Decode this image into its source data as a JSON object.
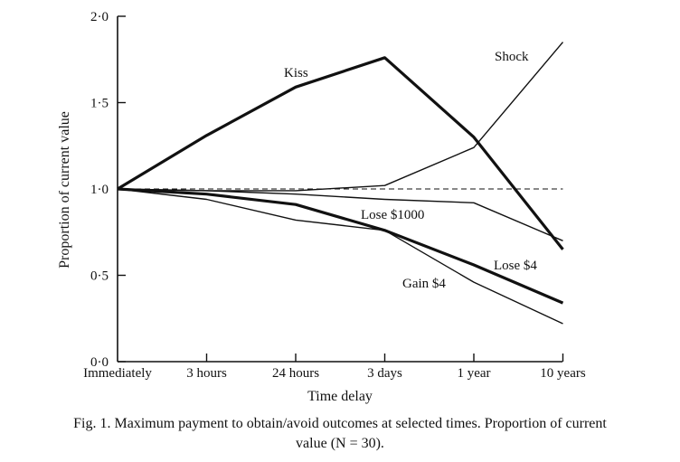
{
  "chart_data": {
    "type": "line",
    "xlabel": "Time delay",
    "ylabel": "Proportion of current value",
    "categories": [
      "Immediately",
      "3 hours",
      "24 hours",
      "3 days",
      "1 year",
      "10 years"
    ],
    "ylim": [
      0,
      2
    ],
    "yticks": [
      {
        "value": 0,
        "label": "0·0"
      },
      {
        "value": 0.5,
        "label": "0·5"
      },
      {
        "value": 1,
        "label": "1·0"
      },
      {
        "value": 1.5,
        "label": "1·5"
      },
      {
        "value": 2,
        "label": "2·0"
      }
    ],
    "reference_line": {
      "value": 1.0,
      "style": "dashed"
    },
    "series": [
      {
        "name": "Kiss",
        "weight": "thick",
        "values": [
          1.0,
          1.31,
          1.59,
          1.76,
          1.3,
          0.65
        ]
      },
      {
        "name": "Shock",
        "weight": "thin",
        "values": [
          1.0,
          0.99,
          0.99,
          1.02,
          1.24,
          1.85
        ]
      },
      {
        "name": "Lose $1000",
        "weight": "thin",
        "values": [
          1.0,
          0.99,
          0.97,
          0.94,
          0.92,
          0.7
        ]
      },
      {
        "name": "Lose $4",
        "weight": "thick",
        "values": [
          1.0,
          0.97,
          0.91,
          0.76,
          0.56,
          0.34
        ]
      },
      {
        "name": "Gain $4",
        "weight": "thin",
        "values": [
          1.0,
          0.94,
          0.82,
          0.76,
          0.46,
          0.22
        ]
      }
    ]
  },
  "caption": {
    "line1": "Fig. 1. Maximum payment to obtain/avoid outcomes at selected times. Proportion of current",
    "line2": "value (N = 30)."
  }
}
